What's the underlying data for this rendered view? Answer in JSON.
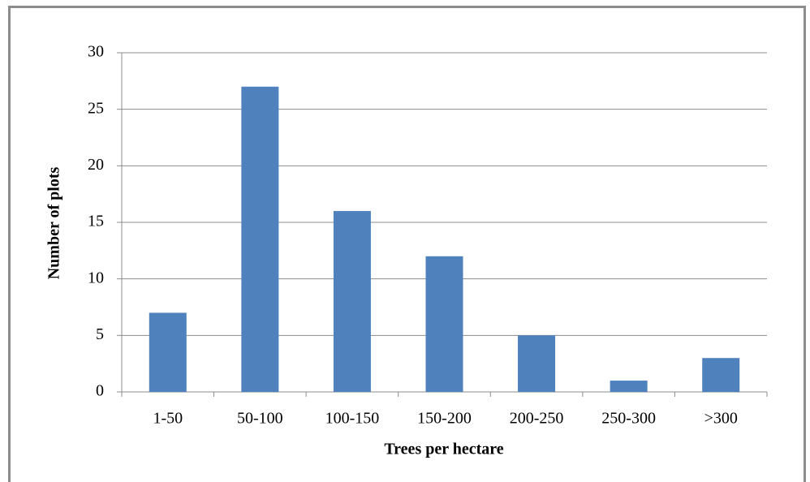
{
  "chart_data": {
    "type": "bar",
    "x_label": "Trees per hectare",
    "y_label": "Number of plots",
    "categories": [
      "1-50",
      "50-100",
      "100-150",
      "150-200",
      "200-250",
      "250-300",
      ">300"
    ],
    "values": [
      7,
      27,
      16,
      12,
      5,
      1,
      3
    ],
    "color": "#4f81bd",
    "ylim": [
      0,
      30
    ],
    "yticks": [
      0,
      5,
      10,
      15,
      20,
      25,
      30
    ],
    "grid": true
  }
}
